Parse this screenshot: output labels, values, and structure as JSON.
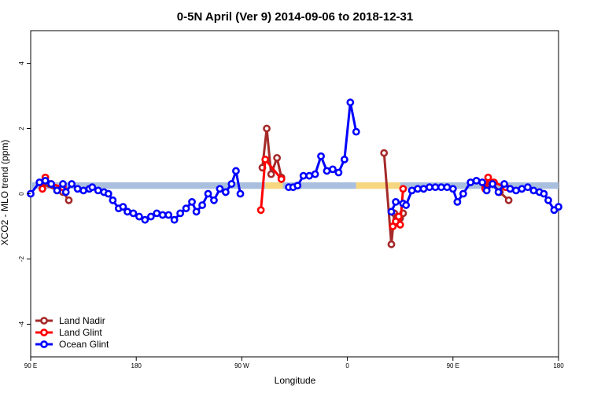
{
  "chart_data": {
    "type": "line",
    "title": "0-5N April (Ver 9)   2014-09-06 to 2018-12-31",
    "xlabel": "Longitude",
    "ylabel": "XCO2 - MLO trend (ppm)",
    "xlim": [
      90,
      270
    ],
    "ylim": [
      -5,
      5
    ],
    "x_ticks": [
      {
        "value": 90,
        "label": "90 E"
      },
      {
        "value": 126,
        "label": "180"
      },
      {
        "value": 162,
        "label": "90 W"
      },
      {
        "value": 198,
        "label": "0"
      },
      {
        "value": 234,
        "label": "90 E"
      },
      {
        "value": 270,
        "label": "180"
      }
    ],
    "y_ticks": [
      {
        "value": 4,
        "label": "4"
      },
      {
        "value": 2,
        "label": "2"
      },
      {
        "value": 0,
        "label": "0"
      },
      {
        "value": -2,
        "label": "-2"
      },
      {
        "value": -4,
        "label": "-4"
      }
    ],
    "legend_position": "bottom-left",
    "band": {
      "y_range": [
        0.15,
        0.35
      ],
      "segments": [
        {
          "x_range": [
            90,
            170
          ],
          "color": "#a9bfdd"
        },
        {
          "x_range": [
            170,
            176
          ],
          "color": "#f6d67e"
        },
        {
          "x_range": [
            176,
            201
          ],
          "color": "#a9bfdd"
        },
        {
          "x_range": [
            201,
            216
          ],
          "color": "#f6d67e"
        },
        {
          "x_range": [
            216,
            270
          ],
          "color": "#a9bfdd"
        }
      ]
    },
    "series": [
      {
        "name": "Land Nadir",
        "color": "#a52a2a",
        "segments": [
          [
            [
              94,
              0.3
            ],
            [
              101,
              0.05
            ],
            [
              103,
              -0.2
            ]
          ],
          [
            [
              169,
              0.8
            ],
            [
              170.5,
              2.0
            ],
            [
              172,
              0.6
            ],
            [
              174,
              1.1
            ],
            [
              175.5,
              0.5
            ]
          ],
          [
            [
              210.5,
              1.25
            ],
            [
              213,
              -1.55
            ],
            [
              214,
              -0.6
            ],
            [
              215,
              -0.7
            ],
            [
              216,
              -0.75
            ],
            [
              217,
              -0.6
            ]
          ],
          [
            [
              245,
              0.2
            ],
            [
              247,
              0.35
            ],
            [
              250,
              0.05
            ],
            [
              253,
              -0.2
            ]
          ]
        ]
      },
      {
        "name": "Land Glint",
        "color": "#ff0000",
        "segments": [
          [
            [
              94,
              0.15
            ],
            [
              95,
              0.5
            ],
            [
              97,
              0.3
            ],
            [
              101,
              0.2
            ]
          ],
          [
            [
              168.5,
              -0.5
            ],
            [
              170,
              1.05
            ],
            [
              175.5,
              0.45
            ]
          ],
          [
            [
              213.5,
              -1.0
            ],
            [
              214.5,
              -0.85
            ],
            [
              215.5,
              -0.7
            ],
            [
              216,
              -0.95
            ],
            [
              217,
              0.15
            ]
          ],
          [
            [
              245,
              0.15
            ],
            [
              246,
              0.5
            ],
            [
              248,
              0.35
            ],
            [
              252,
              0.2
            ]
          ]
        ]
      },
      {
        "name": "Ocean Glint",
        "color": "#0000ff",
        "segments": [
          [
            [
              90,
              0.0
            ],
            [
              93,
              0.35
            ],
            [
              95,
              0.4
            ],
            [
              97,
              0.3
            ],
            [
              99,
              0.1
            ],
            [
              101,
              0.3
            ],
            [
              102,
              0.05
            ],
            [
              104,
              0.3
            ],
            [
              106,
              0.15
            ],
            [
              108,
              0.1
            ],
            [
              110,
              0.15
            ],
            [
              111,
              0.2
            ],
            [
              113,
              0.1
            ],
            [
              115,
              0.05
            ],
            [
              116.5,
              0.0
            ],
            [
              118,
              -0.2
            ],
            [
              120,
              -0.45
            ],
            [
              121.5,
              -0.4
            ],
            [
              123,
              -0.55
            ],
            [
              125,
              -0.6
            ],
            [
              127,
              -0.7
            ],
            [
              129,
              -0.8
            ],
            [
              131,
              -0.7
            ],
            [
              133,
              -0.6
            ],
            [
              135,
              -0.65
            ],
            [
              137,
              -0.65
            ],
            [
              139,
              -0.8
            ],
            [
              141,
              -0.6
            ],
            [
              143,
              -0.45
            ],
            [
              145,
              -0.25
            ],
            [
              146.5,
              -0.55
            ],
            [
              148.5,
              -0.35
            ],
            [
              150.5,
              0.0
            ],
            [
              152.5,
              -0.2
            ],
            [
              154.5,
              0.15
            ],
            [
              156.5,
              0.05
            ],
            [
              158.5,
              0.3
            ],
            [
              160,
              0.7
            ],
            [
              161.5,
              0.0
            ]
          ],
          [
            [
              178,
              0.2
            ],
            [
              179.5,
              0.2
            ],
            [
              181,
              0.25
            ],
            [
              183,
              0.55
            ],
            [
              185,
              0.55
            ],
            [
              187,
              0.6
            ],
            [
              189,
              1.15
            ],
            [
              191,
              0.7
            ],
            [
              193,
              0.75
            ],
            [
              195,
              0.65
            ],
            [
              197,
              1.05
            ],
            [
              199,
              2.8
            ],
            [
              201,
              1.9
            ]
          ],
          [
            [
              213,
              -0.55
            ],
            [
              214.5,
              -0.25
            ],
            [
              217,
              -0.3
            ],
            [
              218,
              -0.35
            ],
            [
              220,
              0.1
            ],
            [
              222,
              0.15
            ],
            [
              224,
              0.15
            ],
            [
              226,
              0.2
            ],
            [
              228,
              0.2
            ],
            [
              230,
              0.2
            ],
            [
              232,
              0.2
            ],
            [
              234,
              0.15
            ],
            [
              235.5,
              -0.25
            ],
            [
              237.5,
              0.0
            ],
            [
              240,
              0.35
            ],
            [
              242,
              0.4
            ],
            [
              244,
              0.35
            ],
            [
              245.5,
              0.1
            ],
            [
              247.5,
              0.3
            ],
            [
              249.5,
              0.05
            ],
            [
              251.5,
              0.3
            ],
            [
              253.5,
              0.15
            ],
            [
              255.5,
              0.1
            ],
            [
              257.5,
              0.15
            ],
            [
              259.5,
              0.2
            ],
            [
              261.5,
              0.1
            ],
            [
              263.5,
              0.05
            ],
            [
              265,
              0.0
            ],
            [
              266.5,
              -0.2
            ],
            [
              268.5,
              -0.5
            ],
            [
              270,
              -0.4
            ]
          ]
        ]
      }
    ]
  }
}
